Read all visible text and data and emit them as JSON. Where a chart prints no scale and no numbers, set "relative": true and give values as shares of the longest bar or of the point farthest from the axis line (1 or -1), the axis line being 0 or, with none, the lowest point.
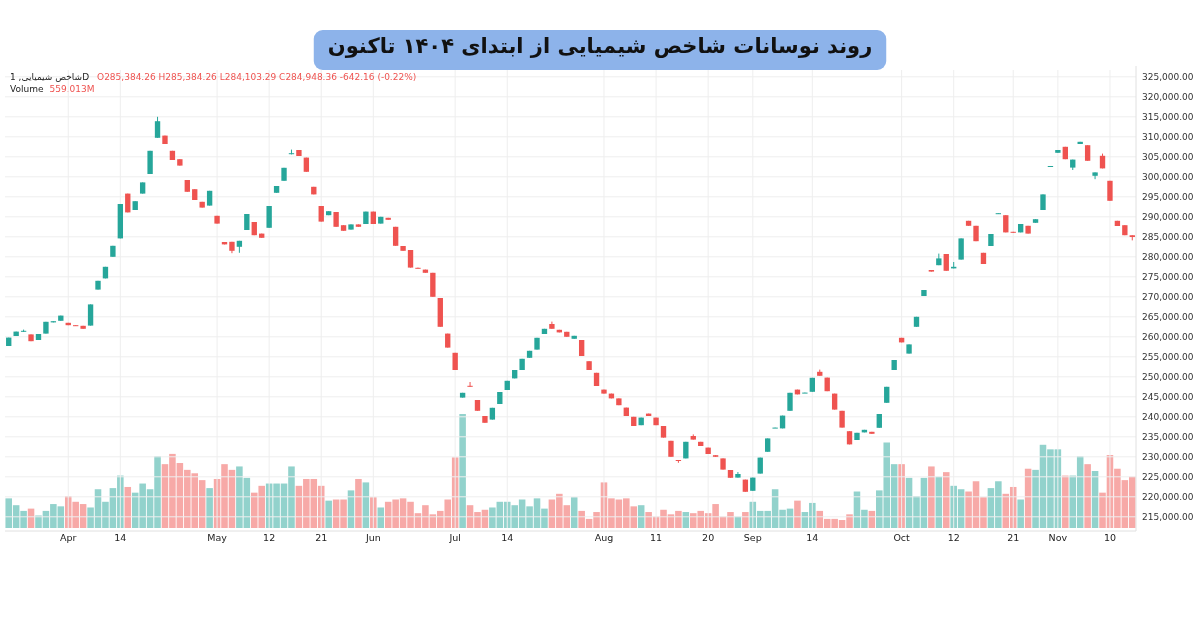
{
  "chart_data": [
    {
      "type": "candlestick",
      "title": "روند نوسانات شاخص شیمیایی از ابتدای ۱۴۰۴ تاکنون",
      "annotations": [
        "شاخص شیمیایی, 1D",
        "O285,384.26 H285,384.26 L284,103.29 C284,948.36 -642.16 (-0.22%)"
      ],
      "categories": [
        null,
        null,
        null,
        null,
        null,
        null,
        null,
        null,
        "Apr",
        null,
        null,
        null,
        null,
        null,
        null,
        "14",
        null,
        null,
        null,
        null,
        null,
        null,
        null,
        null,
        null,
        null,
        null,
        null,
        "May",
        null,
        null,
        null,
        null,
        null,
        null,
        "12",
        null,
        null,
        null,
        null,
        null,
        null,
        "21",
        null,
        null,
        null,
        null,
        null,
        null,
        "Jun",
        null,
        null,
        null,
        null,
        null,
        null,
        null,
        null,
        null,
        null,
        "Jul",
        null,
        null,
        null,
        null,
        null,
        null,
        "14",
        null,
        null,
        null,
        null,
        null,
        null,
        null,
        null,
        null,
        null,
        null,
        null,
        "Aug",
        null,
        null,
        null,
        null,
        null,
        null,
        "11",
        null,
        null,
        null,
        null,
        null,
        null,
        "20",
        null,
        null,
        null,
        null,
        null,
        "Sep",
        null,
        null,
        null,
        null,
        null,
        null,
        null,
        "14",
        null,
        null,
        null,
        null,
        null,
        null,
        null,
        null,
        null,
        null,
        null,
        "Oct",
        null,
        null,
        null,
        null,
        null,
        null,
        "12",
        null,
        null,
        null,
        null,
        null,
        null,
        null,
        "21",
        null,
        null,
        null,
        null,
        null,
        "Nov",
        null,
        null,
        null,
        null,
        null,
        null,
        "10",
        null,
        null,
        null
      ],
      "ohlc": [
        [
          257700,
          259800,
          257700,
          259800
        ],
        [
          260200,
          261300,
          260200,
          261300
        ],
        [
          261300,
          261800,
          261200,
          261500
        ],
        [
          260600,
          260600,
          258900,
          258900
        ],
        [
          259200,
          260700,
          259200,
          260700
        ],
        [
          260800,
          263750,
          260800,
          263750
        ],
        [
          263600,
          263900,
          263600,
          263900
        ],
        [
          264000,
          265300,
          264000,
          265300
        ],
        [
          263500,
          263500,
          262900,
          262900
        ],
        [
          262900,
          262900,
          262750,
          262750
        ],
        [
          262750,
          262750,
          262000,
          262000
        ],
        [
          262800,
          268100,
          262800,
          268100
        ],
        [
          271800,
          274000,
          271800,
          274000
        ],
        [
          274600,
          277500,
          274600,
          277500
        ],
        [
          280000,
          282750,
          280000,
          282750
        ],
        [
          284600,
          293200,
          284600,
          293200
        ],
        [
          295800,
          295800,
          291100,
          291100
        ],
        [
          291700,
          293900,
          291700,
          293900
        ],
        [
          295800,
          298600,
          295800,
          298600
        ],
        [
          300700,
          306500,
          300700,
          306500
        ],
        [
          309750,
          315000,
          309750,
          313900
        ],
        [
          310300,
          310300,
          308200,
          308200
        ],
        [
          306500,
          306500,
          304200,
          304200
        ],
        [
          304400,
          304400,
          302800,
          302800
        ],
        [
          299200,
          299200,
          296250,
          296250
        ],
        [
          296900,
          296900,
          294200,
          294200
        ],
        [
          293750,
          293750,
          292300,
          292300
        ],
        [
          292800,
          296500,
          292800,
          296500
        ],
        [
          290250,
          290250,
          288300,
          288300
        ],
        [
          283700,
          283700,
          283100,
          283100
        ],
        [
          283750,
          283750,
          280900,
          281500
        ],
        [
          282500,
          284000,
          281000,
          284000
        ],
        [
          286700,
          290700,
          286700,
          290700
        ],
        [
          288700,
          288700,
          285400,
          285400
        ],
        [
          285800,
          285800,
          284750,
          284750
        ],
        [
          287250,
          292700,
          287250,
          292700
        ],
        [
          296000,
          297700,
          296000,
          297700
        ],
        [
          299000,
          302250,
          299000,
          302250
        ],
        [
          305750,
          306800,
          305600,
          305900
        ],
        [
          306700,
          306700,
          305200,
          305200
        ],
        [
          304800,
          304800,
          301250,
          301250
        ],
        [
          297500,
          297500,
          295600,
          295600
        ],
        [
          292700,
          292700,
          288800,
          288800
        ],
        [
          290400,
          291400,
          290400,
          291400
        ],
        [
          291200,
          291200,
          287500,
          287500
        ],
        [
          287900,
          287900,
          286500,
          286500
        ],
        [
          286800,
          288100,
          286800,
          288100
        ],
        [
          288100,
          288100,
          287500,
          287500
        ],
        [
          288200,
          291300,
          288200,
          291300
        ],
        [
          291300,
          291300,
          288200,
          288200
        ],
        [
          288300,
          290000,
          288300,
          290000
        ],
        [
          289750,
          289750,
          289250,
          289250
        ],
        [
          287500,
          287500,
          282750,
          282750
        ],
        [
          282700,
          282700,
          281500,
          281500
        ],
        [
          281700,
          281700,
          277300,
          277300
        ],
        [
          277250,
          277300,
          277100,
          277200
        ],
        [
          276800,
          276800,
          276000,
          276000
        ],
        [
          276000,
          276000,
          270000,
          270000
        ],
        [
          269700,
          269700,
          262500,
          262500
        ],
        [
          260800,
          260800,
          257300,
          257300
        ],
        [
          256000,
          256000,
          251700,
          251700
        ],
        [
          244800,
          246000,
          244800,
          246000
        ],
        [
          247750,
          248700,
          247500,
          247500
        ],
        [
          244200,
          244200,
          241500,
          241500
        ],
        [
          240200,
          240200,
          238500,
          238500
        ],
        [
          239300,
          242250,
          239300,
          242250
        ],
        [
          243200,
          246200,
          243200,
          246200
        ],
        [
          246700,
          249000,
          246700,
          249000
        ],
        [
          249600,
          251700,
          249600,
          251700
        ],
        [
          251700,
          254500,
          251700,
          254500
        ],
        [
          254750,
          256500,
          254750,
          256500
        ],
        [
          256800,
          259750,
          256800,
          259750
        ],
        [
          260700,
          262000,
          260700,
          262000
        ],
        [
          263200,
          263800,
          262000,
          262000
        ],
        [
          261750,
          261750,
          261100,
          261100
        ],
        [
          261250,
          261250,
          260000,
          260000
        ],
        [
          259500,
          260250,
          259500,
          260250
        ],
        [
          259200,
          259200,
          255200,
          255200
        ],
        [
          253900,
          253900,
          251700,
          251700
        ],
        [
          251000,
          251000,
          247700,
          247700
        ],
        [
          246800,
          246800,
          245800,
          245800
        ],
        [
          245800,
          245800,
          244600,
          244600
        ],
        [
          244600,
          244600,
          242900,
          242900
        ],
        [
          242300,
          242300,
          240200,
          240200
        ],
        [
          240000,
          240000,
          237700,
          237700
        ],
        [
          237900,
          239800,
          237900,
          239800
        ],
        [
          240800,
          240800,
          240200,
          240200
        ],
        [
          239800,
          239800,
          237900,
          237900
        ],
        [
          237700,
          237700,
          234800,
          234800
        ],
        [
          234000,
          234000,
          230000,
          230000
        ],
        [
          229200,
          229200,
          228500,
          229000
        ],
        [
          229600,
          233750,
          229600,
          233750
        ],
        [
          235200,
          235600,
          234300,
          234300
        ],
        [
          233750,
          233750,
          232700,
          232700
        ],
        [
          232300,
          232300,
          230700,
          230700
        ],
        [
          230400,
          230400,
          230000,
          230000
        ],
        [
          229600,
          229600,
          226800,
          226800
        ],
        [
          226700,
          226700,
          224750,
          224750
        ],
        [
          224800,
          226200,
          224800,
          225700
        ],
        [
          224300,
          224300,
          221250,
          221250
        ],
        [
          221500,
          224800,
          221500,
          224800
        ],
        [
          225800,
          229800,
          225800,
          229800
        ],
        [
          231250,
          234600,
          231250,
          234600
        ],
        [
          237200,
          237300,
          237200,
          237300
        ],
        [
          237100,
          240300,
          237100,
          240300
        ],
        [
          241500,
          246000,
          241500,
          246000
        ],
        [
          246800,
          246800,
          245600,
          245600
        ],
        [
          245950,
          246050,
          245950,
          246050
        ],
        [
          246250,
          249750,
          246250,
          249750
        ],
        [
          251250,
          251800,
          250250,
          250250
        ],
        [
          249800,
          249800,
          246400,
          246400
        ],
        [
          245800,
          245800,
          241800,
          241800
        ],
        [
          241500,
          241500,
          237300,
          237300
        ],
        [
          236400,
          236400,
          233100,
          233100
        ],
        [
          234200,
          236000,
          234200,
          236000
        ],
        [
          236100,
          236750,
          236100,
          236750
        ],
        [
          236250,
          236250,
          235750,
          235750
        ],
        [
          237250,
          240700,
          237250,
          240700
        ],
        [
          243500,
          247500,
          243500,
          247500
        ],
        [
          251700,
          254200,
          251700,
          254200
        ],
        [
          259750,
          259750,
          258600,
          258600
        ],
        [
          255800,
          258100,
          255800,
          258100
        ],
        [
          262500,
          265000,
          262500,
          265000
        ],
        [
          270200,
          271700,
          270200,
          271700
        ],
        [
          276700,
          276700,
          276300,
          276300
        ],
        [
          277900,
          280800,
          277900,
          279600
        ],
        [
          280700,
          280700,
          276500,
          276500
        ],
        [
          277100,
          278700,
          277100,
          277500
        ],
        [
          279300,
          284600,
          279300,
          284600
        ],
        [
          289000,
          289000,
          287750,
          287750
        ],
        [
          287750,
          287750,
          283900,
          283900
        ],
        [
          281000,
          281000,
          278200,
          278200
        ],
        [
          282700,
          285700,
          282700,
          285700
        ],
        [
          290750,
          290900,
          290750,
          290900
        ],
        [
          290400,
          290400,
          286100,
          286100
        ],
        [
          286250,
          286250,
          286000,
          286000
        ],
        [
          286100,
          288200,
          286100,
          288200
        ],
        [
          287750,
          287750,
          285800,
          285800
        ],
        [
          288500,
          289400,
          288500,
          289400
        ],
        [
          291700,
          295600,
          291700,
          295600
        ],
        [
          302600,
          302700,
          302600,
          302700
        ],
        [
          306000,
          306700,
          306000,
          306700
        ],
        [
          307500,
          307500,
          304400,
          304400
        ],
        [
          302300,
          304300,
          301700,
          304300
        ],
        [
          308200,
          308750,
          308200,
          308750
        ],
        [
          307900,
          307900,
          304000,
          304000
        ],
        [
          300250,
          301100,
          299400,
          301100
        ],
        [
          305250,
          305800,
          302100,
          302100
        ],
        [
          299000,
          299000,
          294000,
          294000
        ],
        [
          289000,
          289000,
          287700,
          287700
        ],
        [
          287900,
          287900,
          285400,
          285400
        ],
        [
          285384.26,
          285384.26,
          284103.29,
          284948.36
        ]
      ],
      "colors": [
        "#26a69a",
        "#26a69a",
        "#26a69a",
        "#ef5350",
        "#26a69a",
        "#26a69a",
        "#26a69a",
        "#26a69a",
        "#ef5350",
        "#ef5350",
        "#ef5350",
        "#26a69a",
        "#26a69a",
        "#26a69a",
        "#26a69a",
        "#26a69a",
        "#ef5350",
        "#26a69a",
        "#26a69a",
        "#26a69a",
        "#26a69a",
        "#ef5350",
        "#ef5350",
        "#ef5350",
        "#ef5350",
        "#ef5350",
        "#ef5350",
        "#26a69a",
        "#ef5350",
        "#ef5350",
        "#ef5350",
        "#26a69a",
        "#26a69a",
        "#ef5350",
        "#ef5350",
        "#26a69a",
        "#26a69a",
        "#26a69a",
        "#26a69a",
        "#ef5350",
        "#ef5350",
        "#ef5350",
        "#ef5350",
        "#26a69a",
        "#ef5350",
        "#ef5350",
        "#26a69a",
        "#ef5350",
        "#26a69a",
        "#ef5350",
        "#26a69a",
        "#ef5350",
        "#ef5350",
        "#ef5350",
        "#ef5350",
        "#ef5350",
        "#ef5350",
        "#ef5350",
        "#ef5350",
        "#ef5350",
        "#ef5350",
        "#26a69a",
        "#ef5350",
        "#ef5350",
        "#ef5350",
        "#26a69a",
        "#26a69a",
        "#26a69a",
        "#26a69a",
        "#26a69a",
        "#26a69a",
        "#26a69a",
        "#26a69a",
        "#ef5350",
        "#ef5350",
        "#ef5350",
        "#26a69a",
        "#ef5350",
        "#ef5350",
        "#ef5350",
        "#ef5350",
        "#ef5350",
        "#ef5350",
        "#ef5350",
        "#ef5350",
        "#26a69a",
        "#ef5350",
        "#ef5350",
        "#ef5350",
        "#ef5350",
        "#ef5350",
        "#26a69a",
        "#ef5350",
        "#ef5350",
        "#ef5350",
        "#ef5350",
        "#ef5350",
        "#ef5350",
        "#26a69a",
        "#ef5350",
        "#26a69a",
        "#26a69a",
        "#26a69a",
        "#26a69a",
        "#26a69a",
        "#26a69a",
        "#ef5350",
        "#26a69a",
        "#26a69a",
        "#ef5350",
        "#ef5350",
        "#ef5350",
        "#ef5350",
        "#ef5350",
        "#26a69a",
        "#26a69a",
        "#ef5350",
        "#26a69a",
        "#26a69a",
        "#26a69a",
        "#ef5350",
        "#26a69a",
        "#26a69a",
        "#26a69a",
        "#ef5350",
        "#26a69a",
        "#ef5350",
        "#26a69a",
        "#26a69a",
        "#ef5350",
        "#ef5350",
        "#ef5350",
        "#26a69a",
        "#26a69a",
        "#ef5350",
        "#ef5350",
        "#26a69a",
        "#ef5350",
        "#26a69a",
        "#26a69a",
        "#26a69a",
        "#26a69a",
        "#ef5350",
        "#26a69a",
        "#26a69a",
        "#ef5350",
        "#26a69a",
        "#ef5350",
        "#ef5350",
        "#ef5350",
        "#ef5350",
        "#ef5350"
      ],
      "ylim": [
        212200,
        326700
      ],
      "yticks": [
        {
          "value": 215000,
          "label": "215,000.00"
        },
        {
          "value": 220000,
          "label": "220,000.00"
        },
        {
          "value": 225000,
          "label": "225,000.00"
        },
        {
          "value": 230000,
          "label": "230,000.00"
        },
        {
          "value": 235000,
          "label": "235,000.00"
        },
        {
          "value": 240000,
          "label": "240,000.00"
        },
        {
          "value": 245000,
          "label": "245,000.00"
        },
        {
          "value": 250000,
          "label": "250,000.00"
        },
        {
          "value": 255000,
          "label": "255,000.00"
        },
        {
          "value": 260000,
          "label": "260,000.00"
        },
        {
          "value": 265000,
          "label": "265,000.00"
        },
        {
          "value": 270000,
          "label": "270,000.00"
        },
        {
          "value": 275000,
          "label": "275,000.00"
        },
        {
          "value": 280000,
          "label": "280,000.00"
        },
        {
          "value": 285000,
          "label": "285,000.00"
        },
        {
          "value": 290000,
          "label": "290,000.00"
        },
        {
          "value": 295000,
          "label": "295,000.00"
        },
        {
          "value": 300000,
          "label": "300,000.00"
        },
        {
          "value": 305000,
          "label": "305,000.00"
        },
        {
          "value": 310000,
          "label": "310,000.00"
        },
        {
          "value": 315000,
          "label": "315,000.00"
        },
        {
          "value": 320000,
          "label": "320,000.00"
        },
        {
          "value": 325000,
          "label": "325,000.00"
        }
      ],
      "grid": true
    },
    {
      "type": "bar",
      "title": "Volume",
      "annotations": [
        "559.013M"
      ],
      "relative": true,
      "categories": [
        null,
        null,
        null,
        null,
        null,
        null,
        null,
        null,
        null,
        null,
        null,
        null,
        null,
        null,
        null,
        null,
        null,
        null,
        null,
        null,
        null,
        null,
        null,
        null,
        null,
        null,
        null,
        null,
        null,
        null,
        null,
        null,
        null,
        null,
        null,
        null,
        null,
        null,
        null,
        null,
        null,
        null,
        null,
        null,
        null,
        null,
        null,
        null,
        null,
        null,
        null,
        null,
        null,
        null,
        null,
        null,
        null,
        null,
        null,
        null,
        null,
        null,
        null,
        null,
        null,
        null,
        null,
        null,
        null,
        null,
        null,
        null,
        null,
        null,
        null,
        null,
        null,
        null,
        null,
        null,
        null,
        null,
        null,
        null,
        null,
        null,
        null,
        null,
        null,
        null,
        null,
        null,
        null,
        null,
        null,
        null,
        null,
        null,
        null,
        null,
        null,
        null,
        null,
        null,
        null,
        null,
        null,
        null,
        null,
        null,
        null,
        null,
        null,
        null,
        null,
        null,
        null,
        null,
        null,
        null,
        null,
        null,
        null,
        null,
        null,
        null,
        null,
        null,
        null,
        null,
        null,
        null,
        null,
        null,
        null,
        null,
        null,
        null,
        null,
        null,
        null,
        null,
        null,
        null,
        null,
        null,
        null,
        null,
        null,
        null,
        null,
        null
      ],
      "values": [
        0.26,
        0.2,
        0.15,
        0.17,
        0.11,
        0.15,
        0.21,
        0.19,
        0.28,
        0.23,
        0.21,
        0.18,
        0.34,
        0.23,
        0.35,
        0.46,
        0.36,
        0.31,
        0.39,
        0.34,
        0.63,
        0.56,
        0.65,
        0.57,
        0.51,
        0.48,
        0.42,
        0.35,
        0.43,
        0.56,
        0.51,
        0.54,
        0.44,
        0.31,
        0.37,
        0.39,
        0.39,
        0.39,
        0.54,
        0.37,
        0.43,
        0.43,
        0.37,
        0.24,
        0.25,
        0.25,
        0.33,
        0.43,
        0.4,
        0.27,
        0.18,
        0.23,
        0.25,
        0.26,
        0.23,
        0.13,
        0.2,
        0.12,
        0.15,
        0.25,
        0.62,
        1,
        0.2,
        0.14,
        0.16,
        0.18,
        0.23,
        0.23,
        0.2,
        0.25,
        0.19,
        0.26,
        0.17,
        0.25,
        0.3,
        0.2,
        0.27,
        0.15,
        0.08,
        0.14,
        0.4,
        0.26,
        0.25,
        0.26,
        0.19,
        0.2,
        0.14,
        0.1,
        0.16,
        0.12,
        0.15,
        0.14,
        0.13,
        0.15,
        0.13,
        0.21,
        0.1,
        0.14,
        0.1,
        0.14,
        0.23,
        0.15,
        0.15,
        0.34,
        0.16,
        0.17,
        0.24,
        0.14,
        0.22,
        0.15,
        0.08,
        0.08,
        0.07,
        0.12,
        0.32,
        0.16,
        0.15,
        0.33,
        0.75,
        0.56,
        0.56,
        0.44,
        0.28,
        0.44,
        0.54,
        0.45,
        0.49,
        0.37,
        0.34,
        0.32,
        0.41,
        0.27,
        0.35,
        0.41,
        0.3,
        0.36,
        0.25,
        0.52,
        0.51,
        0.73,
        0.69,
        0.69,
        0.46,
        0.46,
        0.63,
        0.56,
        0.5,
        0.31,
        0.64,
        0.52,
        0.42,
        0.45
      ],
      "colors": [
        "#92d2cc",
        "#92d2cc",
        "#92d2cc",
        "#f7a9a7",
        "#92d2cc",
        "#92d2cc",
        "#92d2cc",
        "#92d2cc",
        "#f7a9a7",
        "#f7a9a7",
        "#f7a9a7",
        "#92d2cc",
        "#92d2cc",
        "#92d2cc",
        "#92d2cc",
        "#92d2cc",
        "#f7a9a7",
        "#92d2cc",
        "#92d2cc",
        "#92d2cc",
        "#92d2cc",
        "#f7a9a7",
        "#f7a9a7",
        "#f7a9a7",
        "#f7a9a7",
        "#f7a9a7",
        "#f7a9a7",
        "#92d2cc",
        "#f7a9a7",
        "#f7a9a7",
        "#f7a9a7",
        "#92d2cc",
        "#92d2cc",
        "#f7a9a7",
        "#f7a9a7",
        "#92d2cc",
        "#92d2cc",
        "#92d2cc",
        "#92d2cc",
        "#f7a9a7",
        "#f7a9a7",
        "#f7a9a7",
        "#f7a9a7",
        "#92d2cc",
        "#f7a9a7",
        "#f7a9a7",
        "#92d2cc",
        "#f7a9a7",
        "#92d2cc",
        "#f7a9a7",
        "#92d2cc",
        "#f7a9a7",
        "#f7a9a7",
        "#f7a9a7",
        "#f7a9a7",
        "#f7a9a7",
        "#f7a9a7",
        "#f7a9a7",
        "#f7a9a7",
        "#f7a9a7",
        "#f7a9a7",
        "#92d2cc",
        "#f7a9a7",
        "#f7a9a7",
        "#f7a9a7",
        "#92d2cc",
        "#92d2cc",
        "#92d2cc",
        "#92d2cc",
        "#92d2cc",
        "#92d2cc",
        "#92d2cc",
        "#92d2cc",
        "#f7a9a7",
        "#f7a9a7",
        "#f7a9a7",
        "#92d2cc",
        "#f7a9a7",
        "#f7a9a7",
        "#f7a9a7",
        "#f7a9a7",
        "#f7a9a7",
        "#f7a9a7",
        "#f7a9a7",
        "#f7a9a7",
        "#92d2cc",
        "#f7a9a7",
        "#f7a9a7",
        "#f7a9a7",
        "#f7a9a7",
        "#f7a9a7",
        "#92d2cc",
        "#f7a9a7",
        "#f7a9a7",
        "#f7a9a7",
        "#f7a9a7",
        "#f7a9a7",
        "#f7a9a7",
        "#92d2cc",
        "#f7a9a7",
        "#92d2cc",
        "#92d2cc",
        "#92d2cc",
        "#92d2cc",
        "#92d2cc",
        "#92d2cc",
        "#f7a9a7",
        "#92d2cc",
        "#92d2cc",
        "#f7a9a7",
        "#f7a9a7",
        "#f7a9a7",
        "#f7a9a7",
        "#f7a9a7",
        "#92d2cc",
        "#92d2cc",
        "#f7a9a7",
        "#92d2cc",
        "#92d2cc",
        "#92d2cc",
        "#f7a9a7",
        "#92d2cc",
        "#92d2cc",
        "#92d2cc",
        "#f7a9a7",
        "#92d2cc",
        "#f7a9a7",
        "#92d2cc",
        "#92d2cc",
        "#f7a9a7",
        "#f7a9a7",
        "#f7a9a7",
        "#92d2cc",
        "#92d2cc",
        "#f7a9a7",
        "#f7a9a7",
        "#92d2cc",
        "#f7a9a7",
        "#92d2cc",
        "#92d2cc",
        "#92d2cc",
        "#92d2cc",
        "#f7a9a7",
        "#92d2cc",
        "#92d2cc",
        "#f7a9a7",
        "#92d2cc",
        "#f7a9a7",
        "#f7a9a7",
        "#f7a9a7",
        "#f7a9a7",
        "#f7a9a7"
      ]
    }
  ]
}
